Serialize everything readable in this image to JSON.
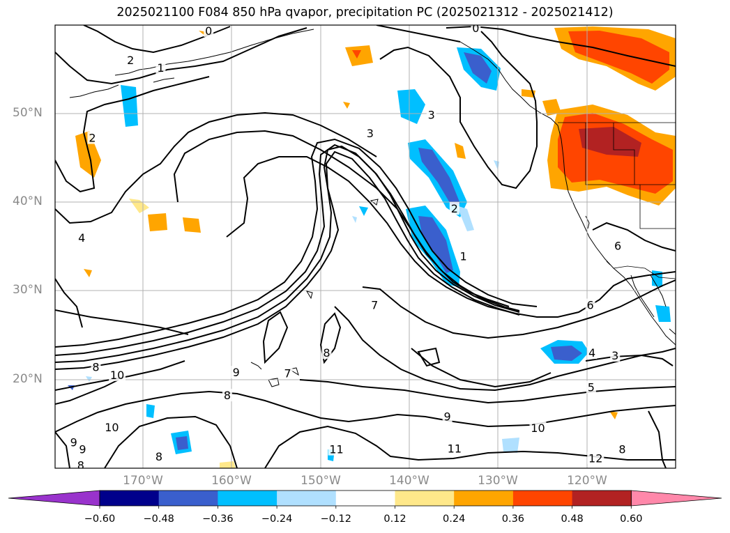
{
  "title": "2025021100 F084 850 hPa qvapor, precipitation PC (2025021312 - 2025021412)",
  "map": {
    "lon_ticks": [
      "170°W",
      "160°W",
      "150°W",
      "140°W",
      "130°W",
      "120°W"
    ],
    "lat_ticks": [
      "50°N",
      "40°N",
      "30°N",
      "20°N"
    ],
    "gridlines": true,
    "contour_labels": [
      {
        "text": "2",
        "lon": -171.4,
        "lat": 56.0
      },
      {
        "text": "1",
        "lon": -168.0,
        "lat": 55.1
      },
      {
        "text": "0",
        "lon": -162.6,
        "lat": 59.3
      },
      {
        "text": "0",
        "lon": -132.5,
        "lat": 59.6
      },
      {
        "text": "2",
        "lon": -175.7,
        "lat": 47.2
      },
      {
        "text": "4",
        "lon": -176.9,
        "lat": 35.9
      },
      {
        "text": "3",
        "lon": -144.4,
        "lat": 47.7
      },
      {
        "text": "3",
        "lon": -137.5,
        "lat": 49.8
      },
      {
        "text": "2",
        "lon": -134.9,
        "lat": 39.2
      },
      {
        "text": "1",
        "lon": -133.9,
        "lat": 33.8
      },
      {
        "text": "6",
        "lon": -116.5,
        "lat": 35.0
      },
      {
        "text": "7",
        "lon": -143.9,
        "lat": 28.3
      },
      {
        "text": "6",
        "lon": -119.6,
        "lat": 28.3
      },
      {
        "text": "8",
        "lon": -175.3,
        "lat": 21.3
      },
      {
        "text": "10",
        "lon": -172.9,
        "lat": 20.4
      },
      {
        "text": "9",
        "lon": -159.5,
        "lat": 20.7
      },
      {
        "text": "8",
        "lon": -160.5,
        "lat": 18.1
      },
      {
        "text": "7",
        "lon": -153.7,
        "lat": 20.6
      },
      {
        "text": "8",
        "lon": -149.3,
        "lat": 22.9
      },
      {
        "text": "4",
        "lon": -119.4,
        "lat": 22.9
      },
      {
        "text": "3",
        "lon": -116.8,
        "lat": 22.6
      },
      {
        "text": "5",
        "lon": -119.5,
        "lat": 19.0
      },
      {
        "text": "9",
        "lon": -135.7,
        "lat": 15.7
      },
      {
        "text": "10",
        "lon": -173.5,
        "lat": 14.5
      },
      {
        "text": "10",
        "lon": -125.5,
        "lat": 14.4
      },
      {
        "text": "11",
        "lon": -148.2,
        "lat": 12.0
      },
      {
        "text": "11",
        "lon": -134.9,
        "lat": 12.1
      },
      {
        "text": "12",
        "lon": -119.0,
        "lat": 11.0
      },
      {
        "text": "8",
        "lon": -116.0,
        "lat": 12.0
      },
      {
        "text": "8",
        "lon": -168.2,
        "lat": 11.2
      },
      {
        "text": "9",
        "lon": -177.8,
        "lat": 12.8
      },
      {
        "text": "9",
        "lon": -176.8,
        "lat": 12.0
      },
      {
        "text": "8",
        "lon": -177.0,
        "lat": 10.2
      }
    ]
  },
  "colorbar": {
    "tick_labels": [
      "−0.60",
      "−0.48",
      "−0.36",
      "−0.24",
      "−0.12",
      "0.12",
      "0.24",
      "0.36",
      "0.48",
      "0.60"
    ],
    "colors": [
      "#9933cc",
      "#00008b",
      "#3a5fcd",
      "#00bfff",
      "#b0e0ff",
      "#ffffff",
      "#ffe88a",
      "#ffa500",
      "#ff4500",
      "#b22222",
      "#ff88aa"
    ]
  }
}
